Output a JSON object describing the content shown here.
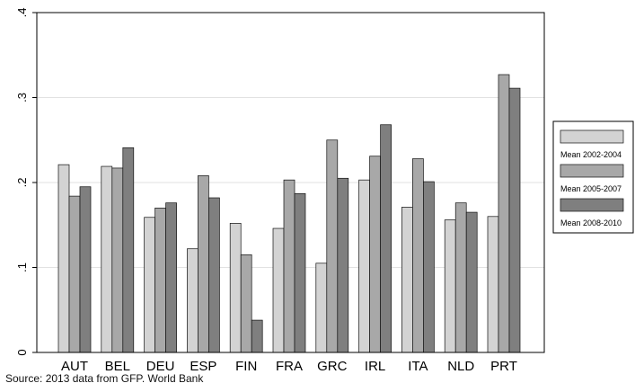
{
  "chart_data": {
    "type": "bar",
    "categories": [
      "AUT",
      "BEL",
      "DEU",
      "ESP",
      "FIN",
      "FRA",
      "GRC",
      "IRL",
      "ITA",
      "NLD",
      "PRT"
    ],
    "series": [
      {
        "name": "Mean 2002-2004",
        "color": "#d3d3d3",
        "values": [
          0.221,
          0.219,
          0.159,
          0.122,
          0.152,
          0.146,
          0.105,
          0.203,
          0.171,
          0.156,
          0.16
        ]
      },
      {
        "name": "Mean 2005-2007",
        "color": "#a8a8a8",
        "values": [
          0.184,
          0.217,
          0.17,
          0.208,
          0.115,
          0.203,
          0.25,
          0.231,
          0.228,
          0.176,
          0.327
        ]
      },
      {
        "name": "Mean 2008-2010",
        "color": "#7f7f7f",
        "values": [
          0.195,
          0.241,
          0.176,
          0.182,
          0.038,
          0.187,
          0.205,
          0.268,
          0.201,
          0.165,
          0.311
        ]
      }
    ],
    "yticks": [
      0,
      0.1,
      0.2,
      0.3,
      0.4
    ],
    "ytick_labels": [
      "0",
      ".1",
      ".2",
      ".3",
      ".4"
    ],
    "ylim": [
      0,
      0.4
    ],
    "grid": true,
    "legend_position": "right",
    "source": "Source: 2013 data from GFP. World Bank"
  }
}
